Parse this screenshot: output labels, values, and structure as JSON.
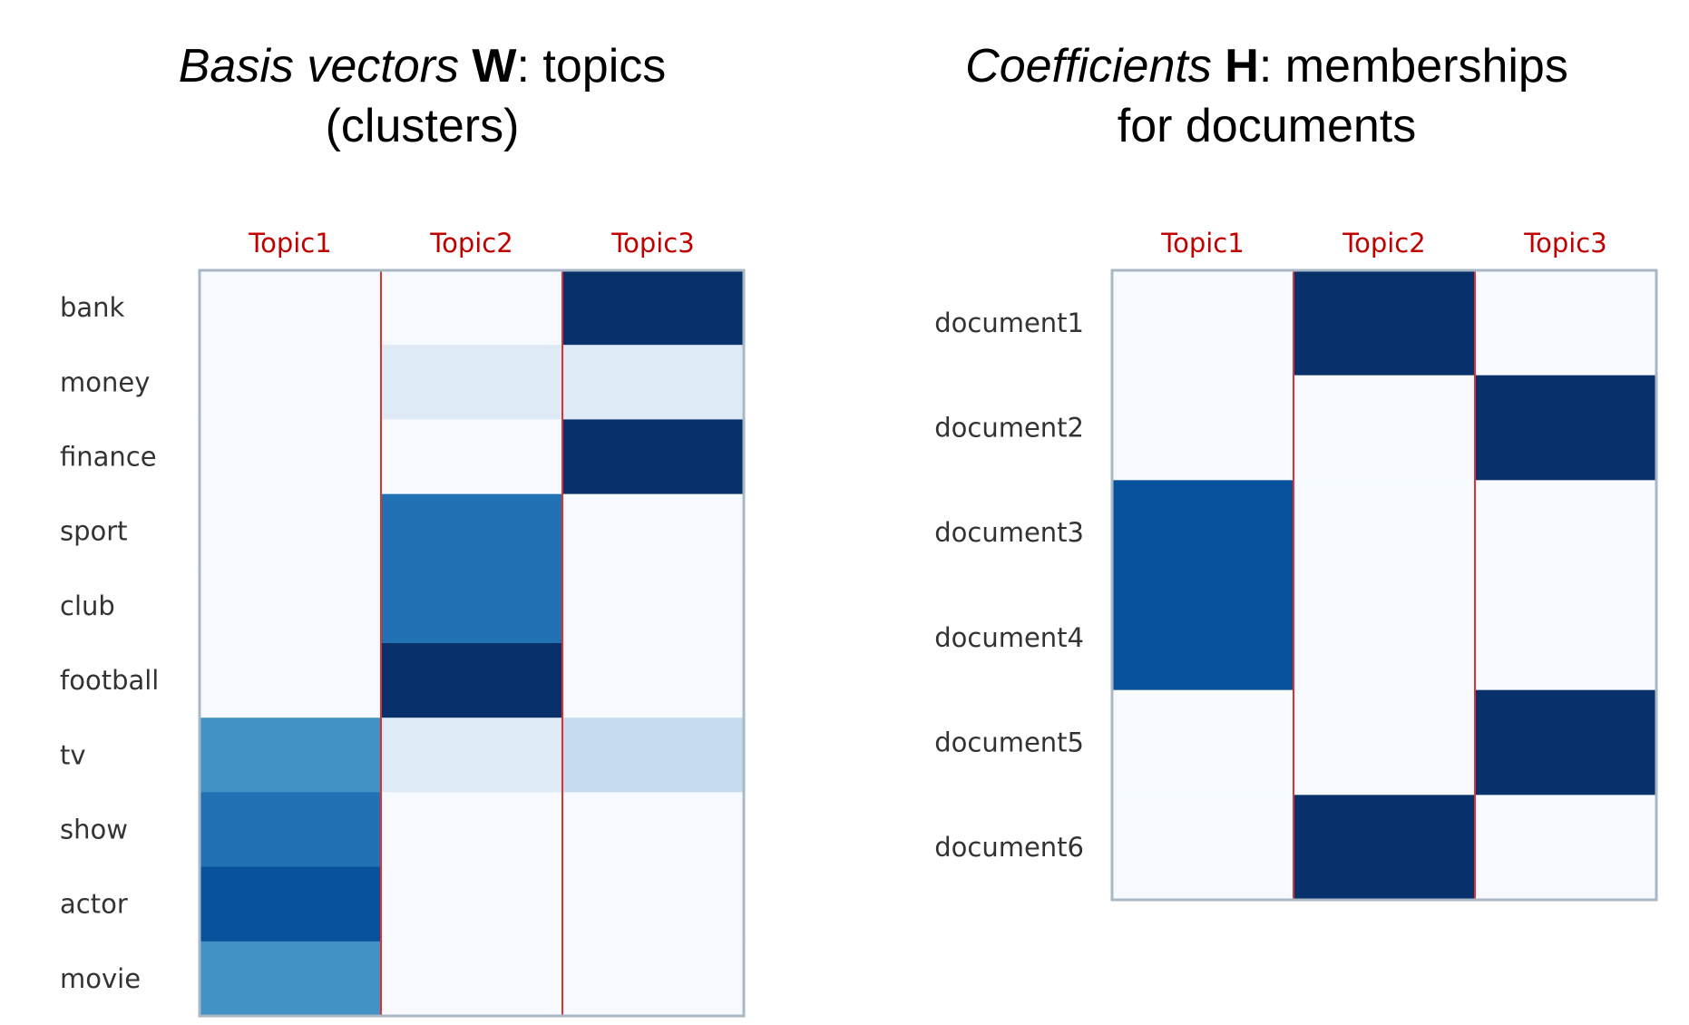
{
  "colors": {
    "frame": "#a8b8c4",
    "divider": "#e03030",
    "column_label": "#c00000",
    "row_label": "#333333",
    "colormap": "Blues",
    "level_colors": [
      "#f7fbff",
      "#deebf7",
      "#c6dbef",
      "#4292c6",
      "#2171b5",
      "#08519c",
      "#08306b"
    ]
  },
  "chart_data": [
    {
      "type": "heatmap",
      "title": {
        "italic": "Basis vectors",
        "bold": "W",
        "rest_line1": ": topics",
        "line2": "(clusters)"
      },
      "columns": [
        "Topic1",
        "Topic2",
        "Topic3"
      ],
      "rows": [
        "bank",
        "money",
        "finance",
        "sport",
        "club",
        "football",
        "tv",
        "show",
        "actor",
        "movie"
      ],
      "values": [
        [
          0.0,
          0.0,
          1.0
        ],
        [
          0.0,
          0.1,
          0.1
        ],
        [
          0.0,
          0.0,
          1.0
        ],
        [
          0.0,
          0.6,
          0.0
        ],
        [
          0.0,
          0.6,
          0.0
        ],
        [
          0.0,
          1.0,
          0.0
        ],
        [
          0.5,
          0.1,
          0.2
        ],
        [
          0.6,
          0.0,
          0.0
        ],
        [
          0.8,
          0.0,
          0.0
        ],
        [
          0.5,
          0.0,
          0.0
        ]
      ],
      "colormap": "Blues"
    },
    {
      "type": "heatmap",
      "title": {
        "italic": "Coefficients",
        "bold": "H",
        "rest_line1": ": memberships",
        "line2": "for documents"
      },
      "columns": [
        "Topic1",
        "Topic2",
        "Topic3"
      ],
      "rows": [
        "document1",
        "document2",
        "document3",
        "document4",
        "document5",
        "document6"
      ],
      "values": [
        [
          0.0,
          1.0,
          0.0
        ],
        [
          0.0,
          0.0,
          1.0
        ],
        [
          0.8,
          0.0,
          0.0
        ],
        [
          0.8,
          0.0,
          0.0
        ],
        [
          0.0,
          0.0,
          1.0
        ],
        [
          0.0,
          1.0,
          0.0
        ]
      ],
      "colormap": "Blues"
    }
  ]
}
